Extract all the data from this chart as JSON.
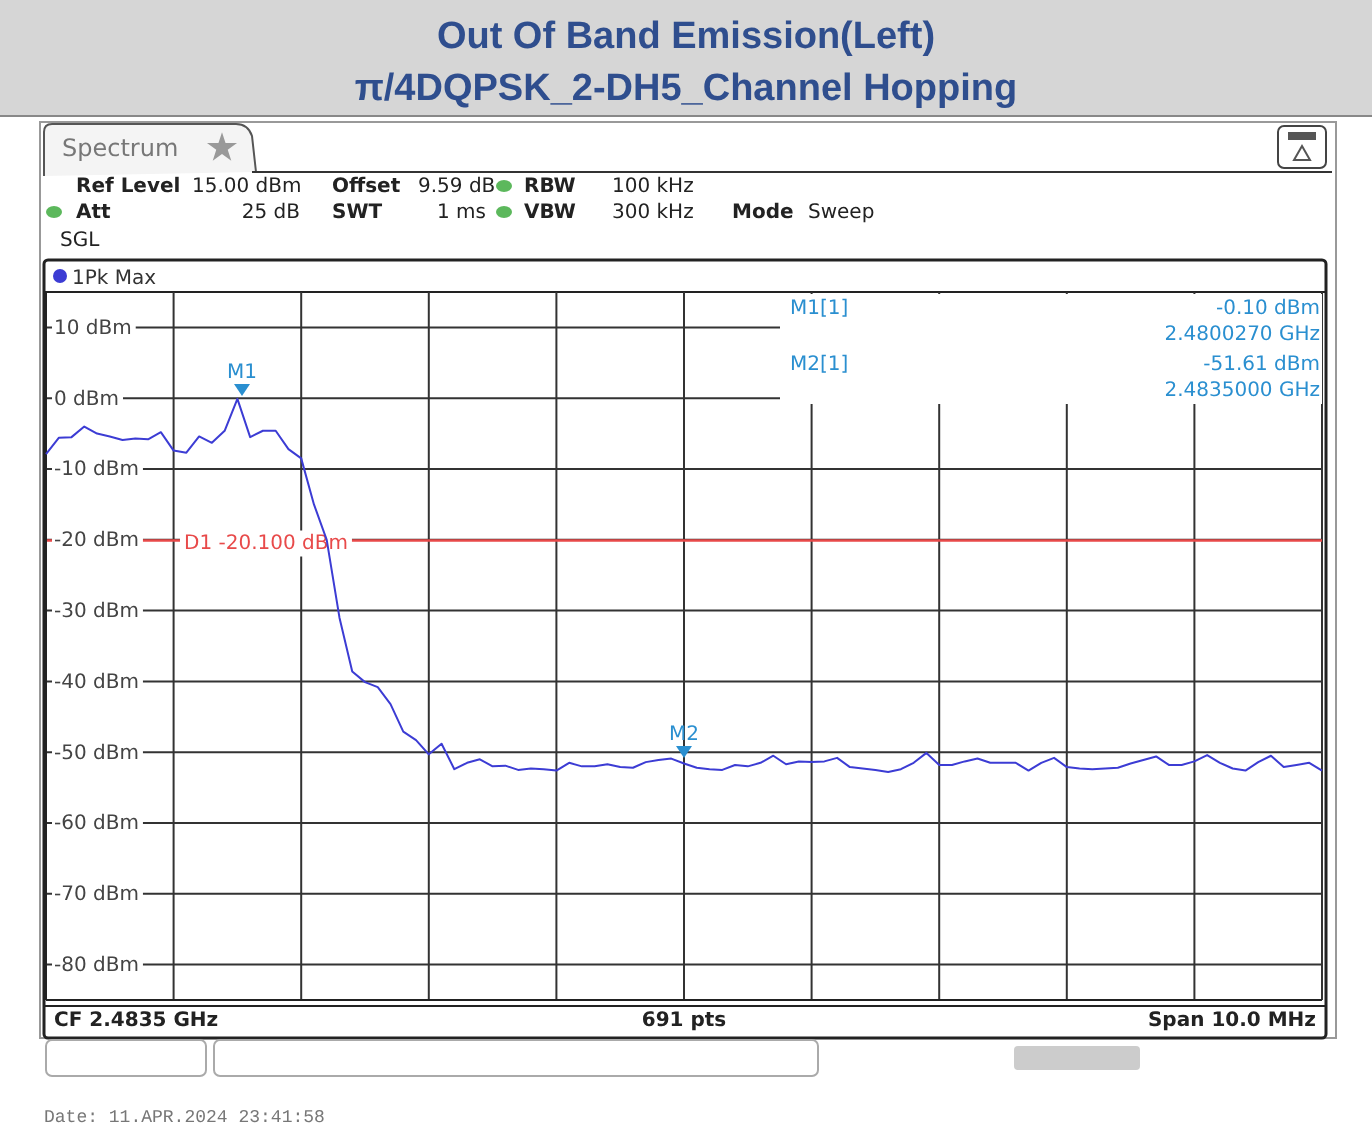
{
  "chart_data": {
    "type": "line",
    "title": "Out Of Band Emission(Left)",
    "subtitle": "π/4DQPSK_2-DH5_Channel Hopping",
    "categories": [
      null,
      null,
      null,
      null,
      null,
      null,
      null,
      null,
      null,
      null,
      null,
      null,
      null,
      null,
      null,
      null,
      null,
      null,
      null,
      null,
      null,
      null,
      null,
      null,
      null,
      null,
      null,
      null,
      null,
      null,
      null,
      null,
      null,
      null,
      null,
      null,
      null,
      null,
      null,
      null,
      null,
      null,
      null,
      null,
      null,
      null,
      null,
      null,
      null,
      null,
      null,
      null,
      null,
      null,
      null,
      null,
      null,
      null,
      null,
      null,
      null,
      null,
      null,
      null,
      null,
      null,
      null,
      null,
      null,
      null,
      null,
      null,
      null,
      null,
      null,
      null,
      null,
      null,
      null,
      null,
      null,
      null,
      null,
      null,
      null,
      null,
      null,
      null,
      null,
      null,
      null,
      null,
      null,
      null,
      null,
      null,
      null,
      null,
      null,
      null,
      null
    ],
    "ylim": [
      -85,
      15
    ],
    "yticks": [
      {
        "value": 10,
        "label": "10 dBm"
      },
      {
        "value": 0,
        "label": "0 dBm"
      },
      {
        "value": -10,
        "label": "-10 dBm"
      },
      {
        "value": -20,
        "label": "-20 dBm"
      },
      {
        "value": -30,
        "label": "-30 dBm"
      },
      {
        "value": -40,
        "label": "-40 dBm"
      },
      {
        "value": -50,
        "label": "-50 dBm"
      },
      {
        "value": -60,
        "label": "-60 dBm"
      },
      {
        "value": -70,
        "label": "-70 dBm"
      },
      {
        "value": -80,
        "label": "-80 dBm"
      }
    ],
    "tick_labels": "y",
    "grid": true,
    "legend": "top left",
    "marker": "none",
    "line_style": "solid",
    "series": [
      {
        "name": "1Pk Max",
        "color": "#3c3cd4",
        "values": [
          -7.9,
          -5.6,
          -5.5,
          -4.0,
          -5.0,
          -5.4,
          -5.9,
          -5.7,
          -5.8,
          -4.8,
          -7.4,
          -7.7,
          -5.4,
          -6.3,
          -4.6,
          -0.1,
          -5.5,
          -4.6,
          -4.6,
          -7.2,
          -8.5,
          -15,
          -20,
          -31,
          -38.6,
          -40.1,
          -40.8,
          -43.2,
          -47.1,
          -48.3,
          -50.3,
          -48.8,
          -52.4,
          -51.5,
          -51,
          -52,
          -51.9,
          -52.5,
          -52.3,
          -52.4,
          -52.6,
          -51.5,
          -52,
          -52,
          -51.7,
          -52.1,
          -52.2,
          -51.4,
          -51.1,
          -50.9,
          -51.6,
          -52.2,
          -52.4,
          -52.5,
          -51.8,
          -52,
          -51.5,
          -50.5,
          -51.7,
          -51.3,
          -51.4,
          -51.3,
          -50.8,
          -52.1,
          -52.3,
          -52.5,
          -52.8,
          -52.4,
          -51.5,
          -50.1,
          -51.8,
          -51.8,
          -51.3,
          -50.9,
          -51.5,
          -51.5,
          -51.5,
          -52.6,
          -51.5,
          -50.8,
          -52.1,
          -52.3,
          -52.4,
          -52.3,
          -52.2,
          -51.6,
          -51.1,
          -50.6,
          -51.8,
          -51.8,
          -51.3,
          -50.4,
          -51.5,
          -52.3,
          -52.6,
          -51.4,
          -50.5,
          -52.1,
          -51.8,
          -51.5,
          -52.6
        ]
      }
    ],
    "ref_lines": [
      {
        "axis": "y",
        "value": -20.1,
        "label": "D1 -20.100 dBm",
        "color": "#e84a4a"
      }
    ],
    "annotations": [
      "Spectrum",
      "Ref Level",
      "15.00 dBm",
      "Offset",
      "9.59 dB",
      "RBW",
      "100 kHz",
      "Att",
      "25 dB",
      "SWT",
      "1 ms",
      "VBW",
      "300 kHz",
      "Mode",
      "Sweep",
      "SGL",
      "M1[1]",
      "-0.10 dBm",
      "2.4800270 GHz",
      "M2[1]",
      "-51.61 dBm",
      "2.4835000 GHz",
      "CF 2.4835 GHz",
      "691 pts",
      "Span 10.0 MHz",
      "Date: 11.APR.2024   23:41:58",
      "M1",
      "M2"
    ]
  }
}
